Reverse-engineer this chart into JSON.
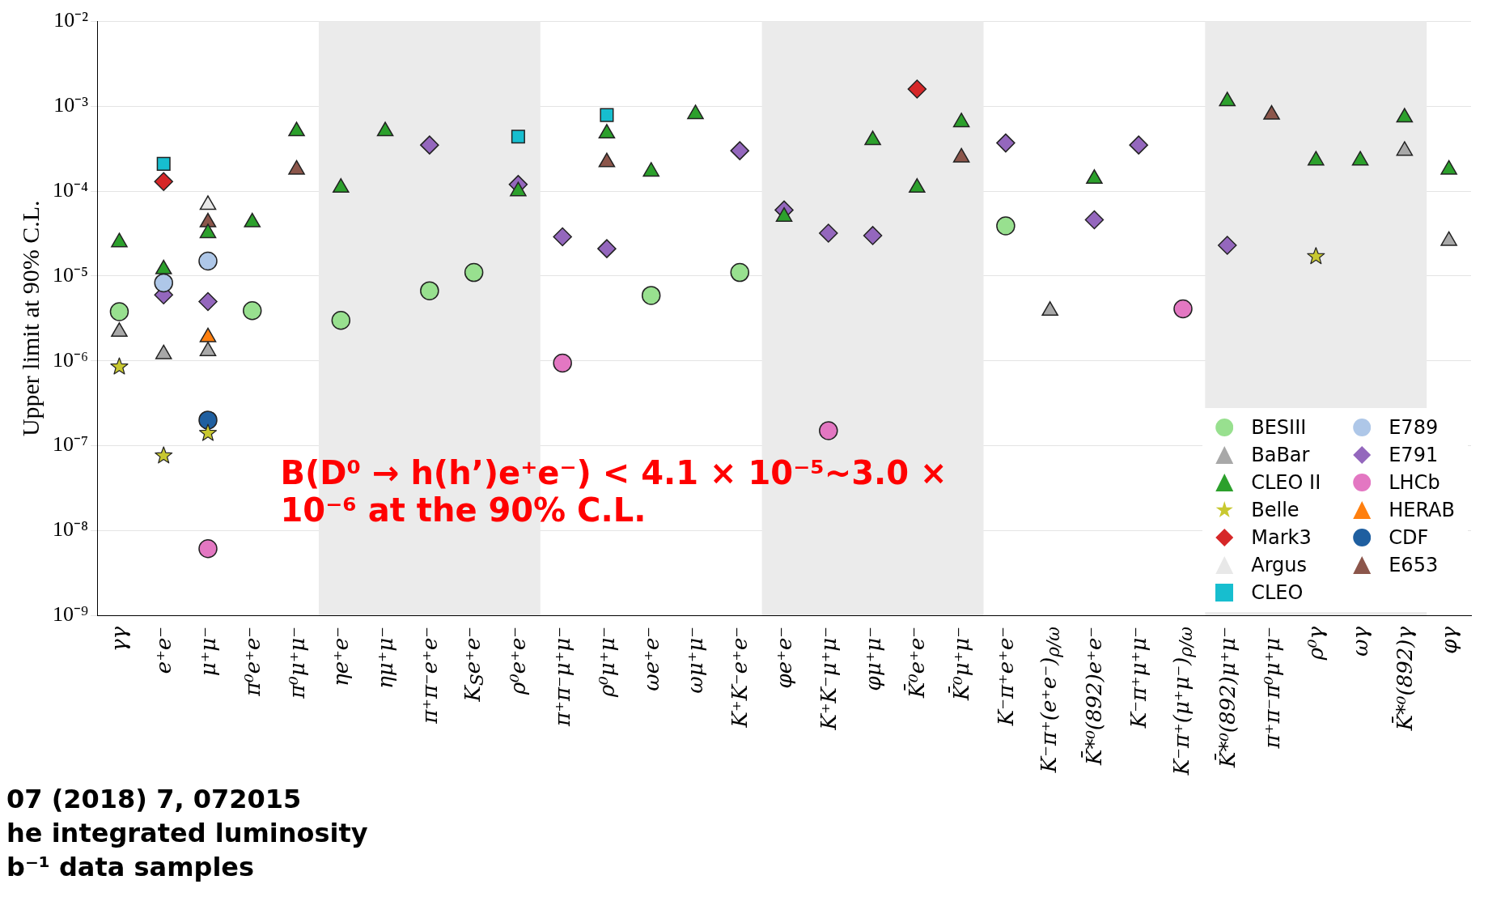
{
  "chart_data": {
    "type": "scatter",
    "ylabel": "Upper limit at 90% C.L.",
    "categories": [
      "γγ",
      "e⁺e⁻",
      "μ⁺μ⁻",
      "π⁰e⁺e⁻",
      "π⁰μ⁺μ⁻",
      "ηe⁺e⁻",
      "ημ⁺μ⁻",
      "π⁺π⁻e⁺e⁻",
      "K$_{S}$e⁺e⁻",
      "ρ⁰e⁺e⁻",
      "π⁺π⁻μ⁺μ⁻",
      "ρ⁰μ⁺μ⁻",
      "ωe⁺e⁻",
      "ωμ⁺μ⁻",
      "K⁺K⁻e⁺e⁻",
      "φe⁺e⁻",
      "K⁺K⁻μ⁺μ⁻",
      "φμ⁺μ⁻",
      "K̄⁰e⁺e⁻",
      "K̄⁰μ⁺μ⁻",
      "K⁻π⁺e⁺e⁻",
      "K⁻π⁺(e⁺e⁻)$_{ρ/ω}$",
      "K̄*⁰(892)e⁺e⁻",
      "K⁻π⁺μ⁺μ⁻",
      "K⁻π⁺(μ⁺μ⁻)$_{ρ/ω}$",
      "K̄*⁰(892)μ⁺μ⁻",
      "π⁺π⁻π⁰μ⁺μ⁻",
      "ρ⁰γ",
      "ωγ",
      "K̄*⁰(892)γ",
      "φγ"
    ],
    "series": [
      {
        "name": "BESIII",
        "color": "#98e08f",
        "marker": "circle",
        "values": [
          3.8e-06,
          null,
          null,
          3.9e-06,
          null,
          3e-06,
          null,
          6.7e-06,
          1.1e-05,
          null,
          null,
          null,
          5.9e-06,
          null,
          1.1e-05,
          null,
          null,
          null,
          null,
          null,
          3.9e-05,
          null,
          null,
          null,
          null,
          null,
          null,
          null,
          null,
          null,
          null
        ]
      },
      {
        "name": "BaBar",
        "color": "#a8a8a8",
        "marker": "triangle",
        "values": [
          2.2e-06,
          1.2e-06,
          1.3e-06,
          null,
          null,
          null,
          null,
          null,
          null,
          null,
          null,
          null,
          null,
          null,
          null,
          null,
          null,
          null,
          null,
          null,
          null,
          3.9e-06,
          null,
          null,
          null,
          null,
          null,
          null,
          null,
          0.0003,
          2.6e-05
        ]
      },
      {
        "name": "CLEO II",
        "color": "#2ca02c",
        "marker": "triangle",
        "values": [
          2.5e-05,
          1.2e-05,
          3.2e-05,
          4.3e-05,
          0.00051,
          0.00011,
          0.00051,
          null,
          null,
          0.0001,
          null,
          0.00048,
          0.00017,
          0.00081,
          null,
          5e-05,
          null,
          0.0004,
          0.00011,
          0.00065,
          null,
          null,
          0.00014,
          null,
          null,
          0.00115,
          null,
          0.00023,
          0.00023,
          0.00074,
          0.00018
        ]
      },
      {
        "name": "Belle",
        "color": "#c8c830",
        "marker": "star",
        "values": [
          8.5e-07,
          7.6e-08,
          1.4e-07,
          null,
          null,
          null,
          null,
          null,
          null,
          null,
          null,
          null,
          null,
          null,
          null,
          null,
          null,
          null,
          null,
          null,
          null,
          null,
          null,
          null,
          null,
          null,
          null,
          1.7e-05,
          null,
          null,
          null
        ]
      },
      {
        "name": "Mark3",
        "color": "#d62728",
        "marker": "diamond",
        "values": [
          null,
          0.00013,
          null,
          null,
          null,
          null,
          null,
          null,
          null,
          null,
          null,
          null,
          null,
          null,
          null,
          null,
          null,
          null,
          0.0016,
          null,
          null,
          null,
          null,
          null,
          null,
          null,
          null,
          null,
          null,
          null,
          null
        ]
      },
      {
        "name": "Argus",
        "color": "#e8e8e8",
        "marker": "triangle",
        "values": [
          null,
          null,
          6.9e-05,
          null,
          null,
          null,
          null,
          null,
          null,
          null,
          null,
          null,
          null,
          null,
          null,
          null,
          null,
          null,
          null,
          null,
          null,
          null,
          null,
          null,
          null,
          null,
          null,
          null,
          null,
          null,
          null
        ]
      },
      {
        "name": "CLEO",
        "color": "#17becf",
        "marker": "square",
        "values": [
          null,
          0.00021,
          null,
          null,
          null,
          null,
          null,
          null,
          null,
          0.00044,
          null,
          0.00079,
          null,
          null,
          null,
          null,
          null,
          null,
          null,
          null,
          null,
          null,
          null,
          null,
          null,
          null,
          null,
          null,
          null,
          null,
          null
        ]
      },
      {
        "name": "E789",
        "color": "#aec7e8",
        "marker": "circle",
        "values": [
          null,
          8.3e-06,
          1.5e-05,
          null,
          null,
          null,
          null,
          null,
          null,
          null,
          null,
          null,
          null,
          null,
          null,
          null,
          null,
          null,
          null,
          null,
          null,
          null,
          null,
          null,
          null,
          null,
          null,
          null,
          null,
          null,
          null
        ]
      },
      {
        "name": "E791",
        "color": "#9467bd",
        "marker": "diamond",
        "values": [
          null,
          6e-06,
          5e-06,
          null,
          null,
          null,
          null,
          0.00035,
          null,
          0.00012,
          2.9e-05,
          2.1e-05,
          null,
          null,
          0.0003,
          6e-05,
          3.2e-05,
          3e-05,
          null,
          null,
          0.00037,
          null,
          4.6e-05,
          0.00035,
          null,
          2.3e-05,
          null,
          null,
          null,
          null,
          null
        ]
      },
      {
        "name": "LHCb",
        "color": "#e377c2",
        "marker": "circle",
        "values": [
          null,
          null,
          6.1e-09,
          null,
          null,
          null,
          null,
          null,
          null,
          null,
          9.4e-07,
          null,
          null,
          null,
          null,
          null,
          1.5e-07,
          null,
          null,
          null,
          null,
          null,
          null,
          null,
          4.1e-06,
          null,
          null,
          null,
          null,
          null,
          null
        ]
      },
      {
        "name": "HERAB",
        "color": "#ff7f0e",
        "marker": "triangle",
        "values": [
          null,
          null,
          1.9e-06,
          null,
          null,
          null,
          null,
          null,
          null,
          null,
          null,
          null,
          null,
          null,
          null,
          null,
          null,
          null,
          null,
          null,
          null,
          null,
          null,
          null,
          null,
          null,
          null,
          null,
          null,
          null,
          null
        ]
      },
      {
        "name": "CDF",
        "color": "#1f5fa0",
        "marker": "circle",
        "values": [
          null,
          null,
          2e-07,
          null,
          null,
          null,
          null,
          null,
          null,
          null,
          null,
          null,
          null,
          null,
          null,
          null,
          null,
          null,
          null,
          null,
          null,
          null,
          null,
          null,
          null,
          null,
          null,
          null,
          null,
          null,
          null
        ]
      },
      {
        "name": "E653",
        "color": "#8c564b",
        "marker": "triangle",
        "values": [
          null,
          null,
          4.3e-05,
          null,
          0.00018,
          null,
          null,
          null,
          null,
          null,
          null,
          0.00022,
          null,
          null,
          null,
          null,
          null,
          null,
          null,
          0.00025,
          null,
          null,
          null,
          null,
          null,
          null,
          0.0008,
          null,
          null,
          null,
          null
        ]
      }
    ],
    "log": true,
    "ylim": [
      1e-09,
      0.01
    ],
    "yticks": [
      {
        "value": 1e-09,
        "label": "10⁻⁹"
      },
      {
        "value": 1e-08,
        "label": "10⁻⁸"
      },
      {
        "value": 1e-07,
        "label": "10⁻⁷"
      },
      {
        "value": 1e-06,
        "label": "10⁻⁶"
      },
      {
        "value": 1e-05,
        "label": "10⁻⁵"
      },
      {
        "value": 0.0001,
        "label": "10⁻⁴"
      },
      {
        "value": 0.001,
        "label": "10⁻³"
      },
      {
        "value": 0.01,
        "label": "10⁻²"
      }
    ],
    "grid": "y",
    "legend": "bottom right",
    "bands": [
      {
        "axis": "x",
        "from": "ηe⁺e⁻",
        "to": "ρ⁰e⁺e⁻",
        "color": "#ebebeb"
      },
      {
        "axis": "x",
        "from": "φe⁺e⁻",
        "to": "K̄⁰μ⁺μ⁻",
        "color": "#ebebeb"
      },
      {
        "axis": "x",
        "from": "K̄*⁰(892)μ⁺μ⁻",
        "to": "K̄*⁰(892)γ",
        "color": "#ebebeb"
      }
    ],
    "annotations": [
      "B(D⁰ → h(h’)e⁺e⁻) < 4.1 × 10⁻⁵~3.0 × 10⁻⁶ at the 90% C.L.",
      "07 (2018) 7, 072015",
      "he integrated luminosity",
      "b⁻¹ data samples"
    ]
  }
}
